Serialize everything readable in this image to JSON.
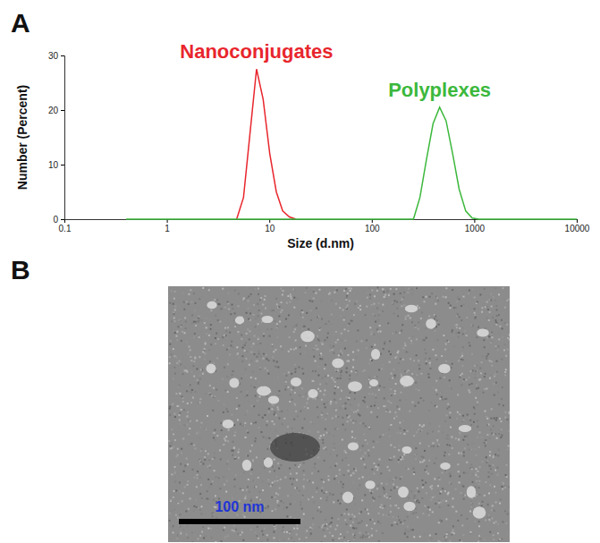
{
  "panel_labels": [
    "A",
    "B"
  ],
  "chart_data": {
    "type": "line",
    "x_label": "Size (d.nm)",
    "y_label": "Number (Percent)",
    "log": "x",
    "grid": false,
    "xlim": [
      0.1,
      10000
    ],
    "xticks": [
      0.1,
      1,
      10,
      100,
      1000,
      10000
    ],
    "ylim": [
      0,
      30
    ],
    "yticks": [
      0,
      10,
      20,
      30
    ],
    "series": [
      {
        "name": "Nanoconjugates",
        "color": "#e8262d",
        "x": [
          4.8,
          5.6,
          6.5,
          7.5,
          8.7,
          10.1,
          11.7,
          13.5,
          15.7,
          18.2
        ],
        "values": [
          0,
          4,
          16,
          27.5,
          22,
          12,
          5,
          1.5,
          0.4,
          0
        ]
      },
      {
        "name": "Polyplexes",
        "color": "#3cb83c",
        "x": [
          0.4,
          255,
          295,
          342,
          396,
          459,
          531,
          615,
          712,
          825,
          955,
          1106,
          10000
        ],
        "values": [
          0,
          0,
          4,
          11,
          17.5,
          20.5,
          18,
          12,
          5.5,
          1.5,
          0.2,
          0,
          0
        ]
      }
    ]
  },
  "image": {
    "scale_bar": {
      "label": "100 nm"
    }
  }
}
